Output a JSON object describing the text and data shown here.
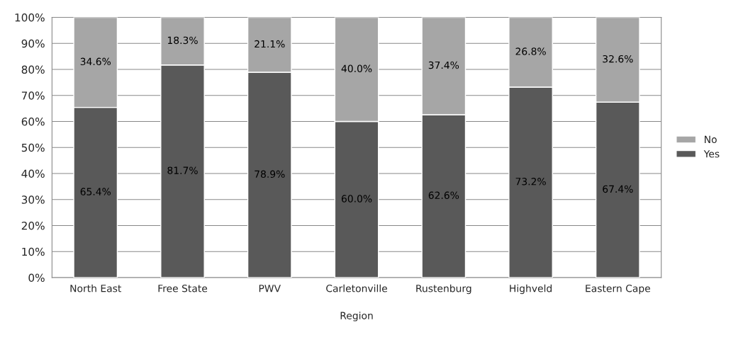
{
  "chart_data": {
    "type": "bar",
    "stacked": true,
    "xlabel": "Region",
    "categories": [
      "North East",
      "Free State",
      "PWV",
      "Carletonville",
      "Rustenburg",
      "Highveld",
      "Eastern Cape"
    ],
    "series": [
      {
        "name": "Yes",
        "color": "#595959",
        "values": [
          65.4,
          81.7,
          78.9,
          60.0,
          62.6,
          73.2,
          67.4
        ],
        "value_labels": [
          "65.4%",
          "81.7%",
          "78.9%",
          "60.0%",
          "62.6%",
          "73.2%",
          "67.4%"
        ]
      },
      {
        "name": "No",
        "color": "#a6a6a6",
        "values": [
          34.6,
          18.3,
          21.1,
          40.0,
          37.4,
          26.8,
          32.6
        ],
        "value_labels": [
          "34.6%",
          "18.3%",
          "21.1%",
          "40.0%",
          "37.4%",
          "26.8%",
          "32.6%"
        ]
      }
    ],
    "ylim": [
      0,
      100
    ],
    "yticks": [
      {
        "value": 0,
        "label": "0%"
      },
      {
        "value": 10,
        "label": "10%"
      },
      {
        "value": 20,
        "label": "20%"
      },
      {
        "value": 30,
        "label": "30%"
      },
      {
        "value": 40,
        "label": "40%"
      },
      {
        "value": 50,
        "label": "50%"
      },
      {
        "value": 60,
        "label": "60%"
      },
      {
        "value": 70,
        "label": "70%"
      },
      {
        "value": 80,
        "label": "80%"
      },
      {
        "value": 90,
        "label": "90%"
      },
      {
        "value": 100,
        "label": "100%"
      }
    ],
    "grid": "y",
    "legend": "right"
  }
}
